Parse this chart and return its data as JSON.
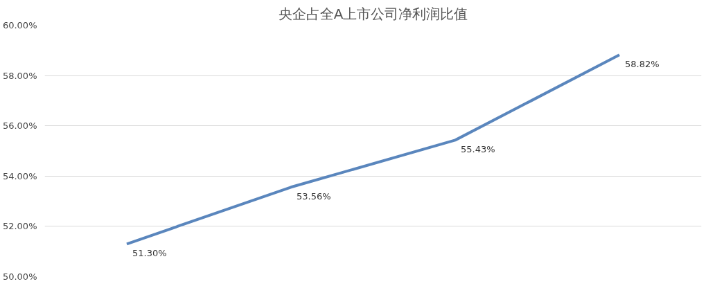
{
  "chart_data": {
    "type": "line",
    "title": "央企占全A上市公司净利润比值",
    "categories": [
      null,
      null,
      null,
      null
    ],
    "series": [
      {
        "color": "#5a86bd",
        "values": [
          51.3,
          53.56,
          55.43,
          58.82
        ],
        "value_labels": [
          "51.30%",
          "53.56%",
          "55.43%",
          "58.82%"
        ]
      }
    ],
    "ylim": [
      50,
      60
    ],
    "yticks": [
      {
        "value": 50,
        "label": "50.00%"
      },
      {
        "value": 52,
        "label": "52.00%"
      },
      {
        "value": 54,
        "label": "54.00%"
      },
      {
        "value": 56,
        "label": "56.00%"
      },
      {
        "value": 58,
        "label": "58.00%"
      },
      {
        "value": 60,
        "label": "60.00%"
      }
    ],
    "grid": "y",
    "tick_labels": "y",
    "marker": "none",
    "line_style": "solid"
  }
}
